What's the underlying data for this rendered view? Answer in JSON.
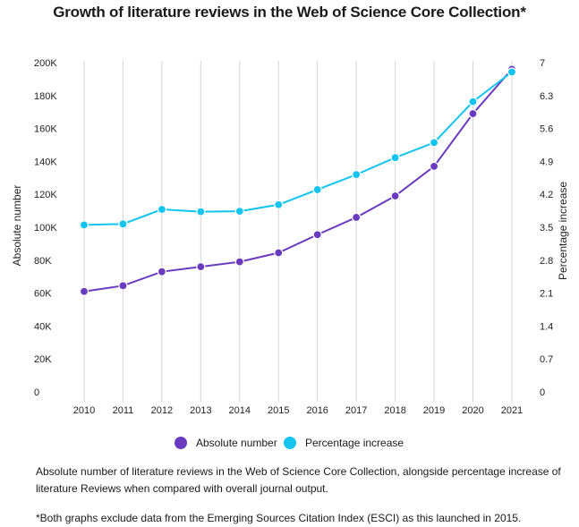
{
  "title": "Growth of literature reviews in the Web of Science Core Collection*",
  "legend": {
    "absolute_label": "Absolute number",
    "percentage_label": "Percentage increase"
  },
  "caption": "Absolute number of literature reviews in the Web of Science Core Collection, alongside percentage increase of literature Reviews when compared with overall journal output.",
  "footnote": "*Both graphs exclude data from the Emerging Sources Citation Index (ESCI) as this launched in 2015.",
  "colors": {
    "absolute": "#6a3bbf",
    "percentage": "#12c4ef",
    "grid": "#d6d6d6"
  },
  "chart_data": {
    "type": "line",
    "title": "Growth of literature reviews in the Web of Science Core Collection*",
    "x": [
      "2010",
      "2011",
      "2012",
      "2013",
      "2014",
      "2015",
      "2016",
      "2017",
      "2018",
      "2019",
      "2020",
      "2021"
    ],
    "xlabel": "",
    "ylabel_left": "Absolute number",
    "ylabel_right": "Percentage increase",
    "y_left_ticks": [
      "0",
      "20K",
      "40K",
      "60K",
      "80K",
      "100K",
      "120K",
      "140K",
      "160K",
      "180K",
      "200K"
    ],
    "y_right_ticks": [
      "0",
      "0.7",
      "1.4",
      "2.1",
      "2.8",
      "3.5",
      "4.2",
      "4.9",
      "5.6",
      "6.3",
      "7"
    ],
    "ylim_left": [
      0,
      200000
    ],
    "ylim_right": [
      0,
      7
    ],
    "grid": "vertical",
    "legend_position": "bottom",
    "series": [
      {
        "name": "Absolute number",
        "axis": "left",
        "values": [
          61000,
          64500,
          73000,
          76000,
          79000,
          84500,
          95500,
          106000,
          119000,
          137000,
          169000,
          196000
        ]
      },
      {
        "name": "Percentage increase",
        "axis": "right",
        "values": [
          3.55,
          3.57,
          3.88,
          3.83,
          3.84,
          3.98,
          4.3,
          4.62,
          4.98,
          5.3,
          6.17,
          6.8
        ]
      }
    ]
  }
}
